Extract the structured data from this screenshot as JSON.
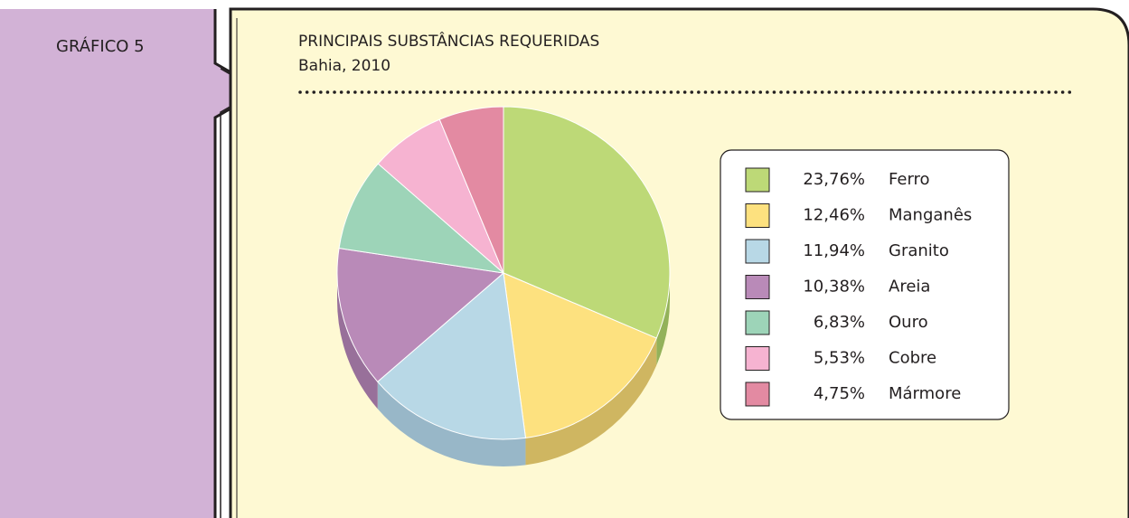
{
  "chart_data": {
    "type": "pie",
    "label": "GRÁFICO 5",
    "title": "PRINCIPAIS SUBSTÂNCIAS REQUERIDAS",
    "subtitle": "Bahia, 2010",
    "categories": [
      "Ferro",
      "Manganês",
      "Granito",
      "Areia",
      "Ouro",
      "Cobre",
      "Mármore"
    ],
    "values": [
      23.76,
      12.46,
      11.94,
      10.38,
      6.83,
      5.53,
      4.75
    ],
    "value_labels": [
      "23,76%",
      "12,46%",
      "11,94%",
      "10,38%",
      "6,83%",
      "5,53%",
      "4,75%"
    ],
    "colors": [
      "#bdd977",
      "#fde17f",
      "#b8d8e6",
      "#b98ab8",
      "#9dd4b8",
      "#f6b3d1",
      "#e38aa2"
    ],
    "side_colors": [
      "#93b25a",
      "#cfb661",
      "#98b7c8",
      "#98709a",
      "#7eb096",
      "#cc90ad",
      "#b86e84"
    ],
    "legend": "right"
  }
}
